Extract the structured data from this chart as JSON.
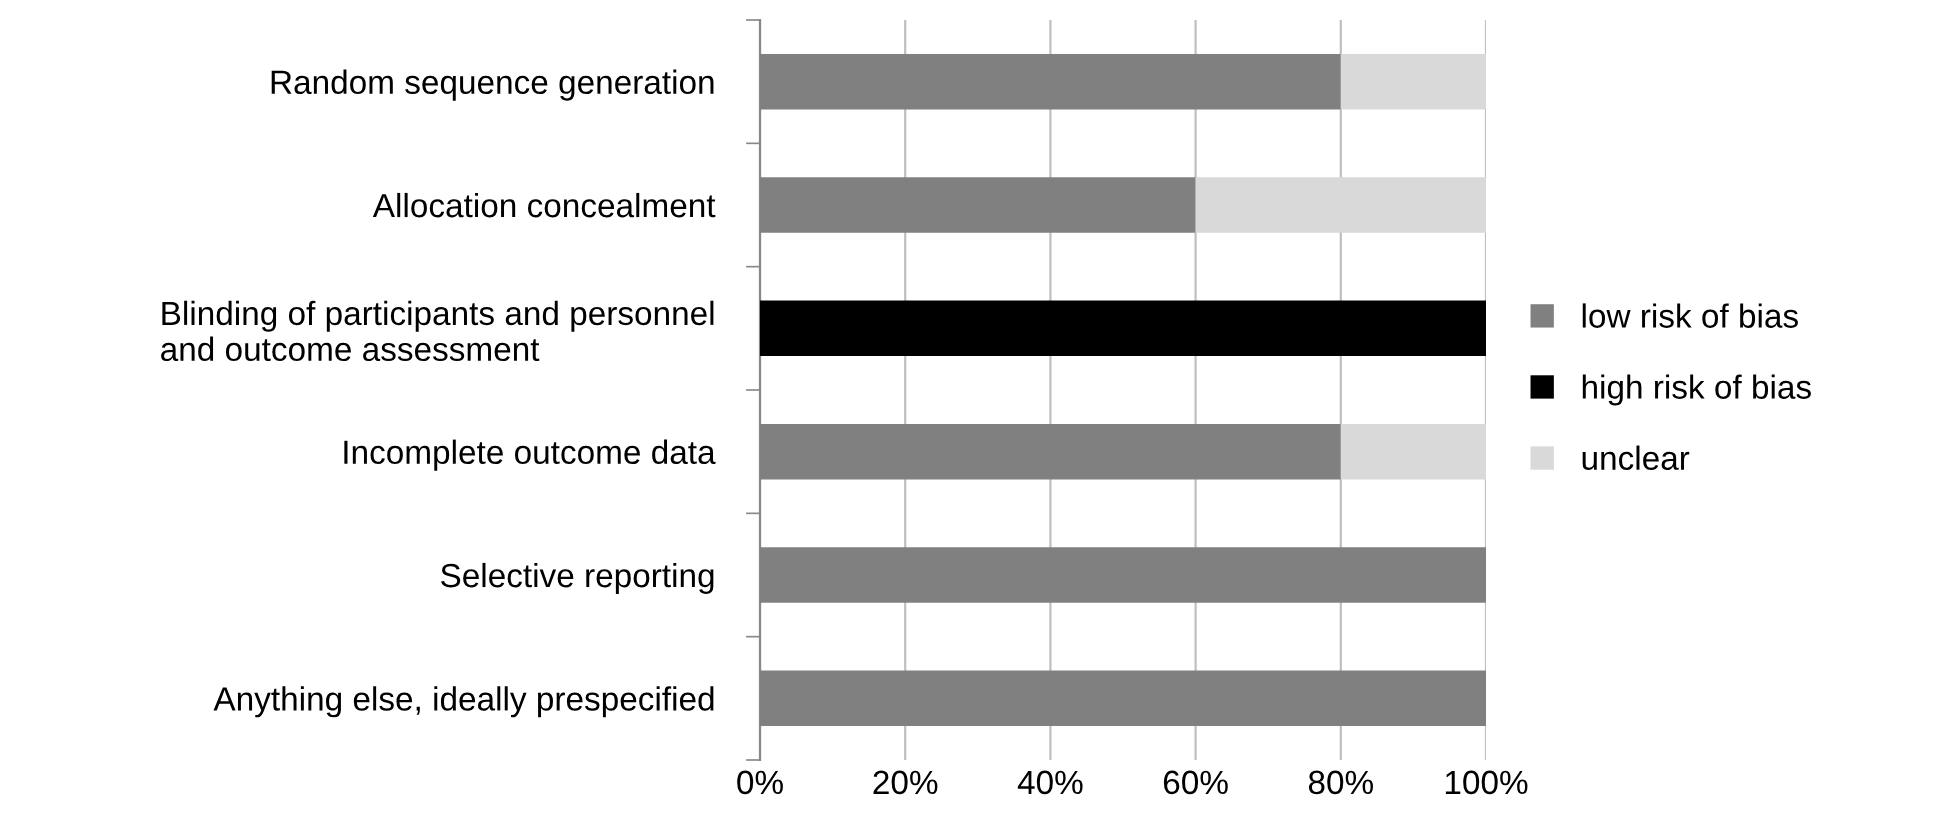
{
  "chart_data": {
    "type": "bar",
    "orientation": "horizontal",
    "stacked": true,
    "categories": [
      "Random sequence generation",
      "Allocation concealment",
      "Blinding of participants and personnel\nand outcome assessment",
      "Incomplete outcome data",
      "Selective reporting",
      "Anything else, ideally prespecified"
    ],
    "series": [
      {
        "name": "low risk of bias",
        "color": "#808080",
        "values": [
          80,
          60,
          0,
          80,
          100,
          100
        ]
      },
      {
        "name": "high risk of bias",
        "color": "#000000",
        "values": [
          0,
          0,
          100,
          0,
          0,
          0
        ]
      },
      {
        "name": "unclear",
        "color": "#d9d9d9",
        "values": [
          20,
          40,
          0,
          20,
          0,
          0
        ]
      }
    ],
    "xlim": [
      0,
      100
    ],
    "xticks": [
      {
        "value": 0,
        "label": "0%"
      },
      {
        "value": 20,
        "label": "20%"
      },
      {
        "value": 40,
        "label": "40%"
      },
      {
        "value": 60,
        "label": "60%"
      },
      {
        "value": 80,
        "label": "80%"
      },
      {
        "value": 100,
        "label": "100%"
      }
    ],
    "grid": "x",
    "legend": "right"
  }
}
